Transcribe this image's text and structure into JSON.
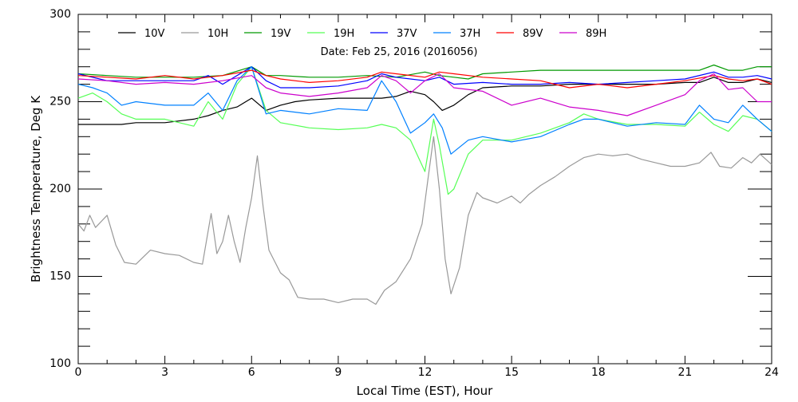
{
  "chart_data": {
    "type": "line",
    "title": "Date: Feb 25, 2016 (2016056)",
    "xlabel": "Local Time (EST), Hour",
    "ylabel": "Brightness Temperature, Deg K",
    "xlim": [
      0,
      24
    ],
    "ylim": [
      100,
      300
    ],
    "xticks": [
      "0",
      "3",
      "6",
      "9",
      "12",
      "15",
      "18",
      "21",
      "24"
    ],
    "yticks": [
      "100",
      "150",
      "200",
      "250",
      "300"
    ],
    "grid": false,
    "legend_position": "top",
    "series": [
      {
        "name": "10V",
        "color": "#000000",
        "points": [
          [
            0,
            237
          ],
          [
            1,
            237
          ],
          [
            1.5,
            237
          ],
          [
            2,
            238
          ],
          [
            3,
            238
          ],
          [
            4,
            240
          ],
          [
            4.5,
            242
          ],
          [
            5,
            245
          ],
          [
            5.5,
            247
          ],
          [
            6,
            252
          ],
          [
            6.5,
            245
          ],
          [
            7,
            248
          ],
          [
            7.5,
            250
          ],
          [
            8,
            251
          ],
          [
            9,
            252
          ],
          [
            10,
            252
          ],
          [
            10.5,
            252
          ],
          [
            11,
            253
          ],
          [
            11.5,
            256
          ],
          [
            12,
            254
          ],
          [
            12.3,
            250
          ],
          [
            12.6,
            245
          ],
          [
            13,
            248
          ],
          [
            13.5,
            254
          ],
          [
            14,
            258
          ],
          [
            15,
            259
          ],
          [
            16,
            259
          ],
          [
            17,
            260
          ],
          [
            18,
            260
          ],
          [
            19,
            260
          ],
          [
            20,
            260
          ],
          [
            21,
            261
          ],
          [
            21.5,
            261
          ],
          [
            22,
            264
          ],
          [
            22.5,
            261
          ],
          [
            23,
            261
          ],
          [
            23.5,
            263
          ],
          [
            24,
            261
          ]
        ]
      },
      {
        "name": "10H",
        "color": "#999999",
        "points": [
          [
            0,
            180
          ],
          [
            0.2,
            176
          ],
          [
            0.4,
            185
          ],
          [
            0.6,
            178
          ],
          [
            1,
            185
          ],
          [
            1.3,
            168
          ],
          [
            1.6,
            158
          ],
          [
            2,
            157
          ],
          [
            2.5,
            165
          ],
          [
            3,
            163
          ],
          [
            3.5,
            162
          ],
          [
            4,
            158
          ],
          [
            4.3,
            157
          ],
          [
            4.6,
            186
          ],
          [
            4.8,
            163
          ],
          [
            5,
            170
          ],
          [
            5.2,
            185
          ],
          [
            5.4,
            170
          ],
          [
            5.6,
            158
          ],
          [
            5.8,
            178
          ],
          [
            6,
            195
          ],
          [
            6.2,
            219
          ],
          [
            6.4,
            190
          ],
          [
            6.6,
            165
          ],
          [
            7,
            152
          ],
          [
            7.3,
            148
          ],
          [
            7.6,
            138
          ],
          [
            8,
            137
          ],
          [
            8.5,
            137
          ],
          [
            9,
            135
          ],
          [
            9.5,
            137
          ],
          [
            10,
            137
          ],
          [
            10.3,
            134
          ],
          [
            10.6,
            142
          ],
          [
            11,
            147
          ],
          [
            11.5,
            160
          ],
          [
            11.9,
            180
          ],
          [
            12.1,
            205
          ],
          [
            12.3,
            230
          ],
          [
            12.5,
            200
          ],
          [
            12.7,
            160
          ],
          [
            12.9,
            140
          ],
          [
            13.2,
            155
          ],
          [
            13.5,
            185
          ],
          [
            13.8,
            198
          ],
          [
            14,
            195
          ],
          [
            14.5,
            192
          ],
          [
            15,
            196
          ],
          [
            15.3,
            192
          ],
          [
            15.6,
            197
          ],
          [
            16,
            202
          ],
          [
            16.5,
            207
          ],
          [
            17,
            213
          ],
          [
            17.5,
            218
          ],
          [
            18,
            220
          ],
          [
            18.5,
            219
          ],
          [
            19,
            220
          ],
          [
            19.5,
            217
          ],
          [
            20,
            215
          ],
          [
            20.5,
            213
          ],
          [
            21,
            213
          ],
          [
            21.5,
            215
          ],
          [
            21.9,
            221
          ],
          [
            22.2,
            213
          ],
          [
            22.6,
            212
          ],
          [
            23,
            218
          ],
          [
            23.3,
            215
          ],
          [
            23.6,
            220
          ],
          [
            24,
            214
          ]
        ]
      },
      {
        "name": "19V",
        "color": "#009900",
        "points": [
          [
            0,
            266
          ],
          [
            1,
            265
          ],
          [
            2,
            264
          ],
          [
            3,
            264
          ],
          [
            4,
            264
          ],
          [
            5,
            265
          ],
          [
            6,
            270
          ],
          [
            6.5,
            265
          ],
          [
            7,
            265
          ],
          [
            8,
            264
          ],
          [
            9,
            264
          ],
          [
            10,
            265
          ],
          [
            11,
            264
          ],
          [
            12,
            267
          ],
          [
            12.5,
            265
          ],
          [
            13,
            264
          ],
          [
            13.5,
            263
          ],
          [
            14,
            266
          ],
          [
            15,
            267
          ],
          [
            16,
            268
          ],
          [
            17,
            268
          ],
          [
            18,
            268
          ],
          [
            19,
            268
          ],
          [
            20,
            268
          ],
          [
            21,
            268
          ],
          [
            21.5,
            268
          ],
          [
            22,
            271
          ],
          [
            22.5,
            268
          ],
          [
            23,
            268
          ],
          [
            23.5,
            270
          ],
          [
            24,
            270
          ]
        ]
      },
      {
        "name": "19H",
        "color": "#55ff55",
        "points": [
          [
            0,
            252
          ],
          [
            0.5,
            255
          ],
          [
            1,
            250
          ],
          [
            1.5,
            243
          ],
          [
            2,
            240
          ],
          [
            3,
            240
          ],
          [
            3.5,
            238
          ],
          [
            4,
            236
          ],
          [
            4.5,
            250
          ],
          [
            5,
            240
          ],
          [
            5.5,
            260
          ],
          [
            6,
            270
          ],
          [
            6.5,
            245
          ],
          [
            7,
            238
          ],
          [
            8,
            235
          ],
          [
            9,
            234
          ],
          [
            10,
            235
          ],
          [
            10.5,
            237
          ],
          [
            11,
            235
          ],
          [
            11.5,
            228
          ],
          [
            12,
            210
          ],
          [
            12.3,
            240
          ],
          [
            12.5,
            225
          ],
          [
            12.8,
            197
          ],
          [
            13,
            200
          ],
          [
            13.5,
            220
          ],
          [
            14,
            228
          ],
          [
            15,
            228
          ],
          [
            16,
            232
          ],
          [
            17,
            238
          ],
          [
            17.5,
            243
          ],
          [
            18,
            240
          ],
          [
            19,
            237
          ],
          [
            20,
            237
          ],
          [
            21,
            236
          ],
          [
            21.5,
            244
          ],
          [
            22,
            237
          ],
          [
            22.5,
            233
          ],
          [
            23,
            242
          ],
          [
            23.5,
            240
          ],
          [
            24,
            233
          ]
        ]
      },
      {
        "name": "37V",
        "color": "#0000ff",
        "points": [
          [
            0,
            266
          ],
          [
            1,
            262
          ],
          [
            2,
            262
          ],
          [
            3,
            262
          ],
          [
            4,
            262
          ],
          [
            4.5,
            265
          ],
          [
            5,
            260
          ],
          [
            6,
            270
          ],
          [
            6.5,
            262
          ],
          [
            7,
            258
          ],
          [
            8,
            258
          ],
          [
            9,
            259
          ],
          [
            10,
            262
          ],
          [
            10.5,
            266
          ],
          [
            11,
            264
          ],
          [
            12,
            262
          ],
          [
            12.5,
            264
          ],
          [
            13,
            260
          ],
          [
            14,
            261
          ],
          [
            15,
            260
          ],
          [
            16,
            260
          ],
          [
            17,
            261
          ],
          [
            18,
            260
          ],
          [
            19,
            261
          ],
          [
            20,
            262
          ],
          [
            21,
            263
          ],
          [
            22,
            267
          ],
          [
            22.5,
            264
          ],
          [
            23,
            264
          ],
          [
            23.5,
            265
          ],
          [
            24,
            263
          ]
        ]
      },
      {
        "name": "37H",
        "color": "#0080ff",
        "points": [
          [
            0,
            260
          ],
          [
            0.5,
            258
          ],
          [
            1,
            255
          ],
          [
            1.5,
            248
          ],
          [
            2,
            250
          ],
          [
            3,
            248
          ],
          [
            4,
            248
          ],
          [
            4.5,
            255
          ],
          [
            5,
            245
          ],
          [
            5.5,
            262
          ],
          [
            6,
            270
          ],
          [
            6.5,
            243
          ],
          [
            7,
            245
          ],
          [
            8,
            243
          ],
          [
            9,
            246
          ],
          [
            10,
            245
          ],
          [
            10.5,
            262
          ],
          [
            11,
            250
          ],
          [
            11.5,
            232
          ],
          [
            12,
            238
          ],
          [
            12.3,
            243
          ],
          [
            12.6,
            235
          ],
          [
            12.9,
            220
          ],
          [
            13.5,
            228
          ],
          [
            14,
            230
          ],
          [
            15,
            227
          ],
          [
            16,
            230
          ],
          [
            17,
            237
          ],
          [
            17.5,
            240
          ],
          [
            18,
            240
          ],
          [
            19,
            236
          ],
          [
            20,
            238
          ],
          [
            21,
            237
          ],
          [
            21.5,
            248
          ],
          [
            22,
            240
          ],
          [
            22.5,
            238
          ],
          [
            23,
            248
          ],
          [
            23.5,
            240
          ],
          [
            24,
            233
          ]
        ]
      },
      {
        "name": "89V",
        "color": "#ff0000",
        "points": [
          [
            0,
            265
          ],
          [
            1,
            264
          ],
          [
            2,
            263
          ],
          [
            3,
            265
          ],
          [
            4,
            263
          ],
          [
            5,
            265
          ],
          [
            6,
            268
          ],
          [
            6.5,
            265
          ],
          [
            7,
            263
          ],
          [
            8,
            261
          ],
          [
            9,
            262
          ],
          [
            10,
            264
          ],
          [
            10.5,
            267
          ],
          [
            11,
            266
          ],
          [
            12,
            264
          ],
          [
            12.5,
            267
          ],
          [
            13,
            266
          ],
          [
            14,
            264
          ],
          [
            15,
            263
          ],
          [
            16,
            262
          ],
          [
            17,
            258
          ],
          [
            18,
            260
          ],
          [
            19,
            258
          ],
          [
            20,
            260
          ],
          [
            21,
            262
          ],
          [
            22,
            265
          ],
          [
            22.5,
            263
          ],
          [
            23,
            262
          ],
          [
            23.5,
            263
          ],
          [
            24,
            260
          ]
        ]
      },
      {
        "name": "89H",
        "color": "#cc00cc",
        "points": [
          [
            0,
            263
          ],
          [
            1,
            262
          ],
          [
            2,
            260
          ],
          [
            3,
            261
          ],
          [
            4,
            260
          ],
          [
            5,
            262
          ],
          [
            6,
            265
          ],
          [
            6.5,
            258
          ],
          [
            7,
            255
          ],
          [
            8,
            253
          ],
          [
            9,
            255
          ],
          [
            10,
            258
          ],
          [
            10.5,
            265
          ],
          [
            11,
            262
          ],
          [
            11.5,
            255
          ],
          [
            12,
            262
          ],
          [
            12.5,
            266
          ],
          [
            13,
            258
          ],
          [
            14,
            256
          ],
          [
            15,
            248
          ],
          [
            16,
            252
          ],
          [
            17,
            247
          ],
          [
            18,
            245
          ],
          [
            19,
            242
          ],
          [
            20,
            248
          ],
          [
            21,
            254
          ],
          [
            21.5,
            262
          ],
          [
            22,
            266
          ],
          [
            22.5,
            257
          ],
          [
            23,
            258
          ],
          [
            23.5,
            250
          ],
          [
            24,
            250
          ]
        ]
      }
    ]
  }
}
